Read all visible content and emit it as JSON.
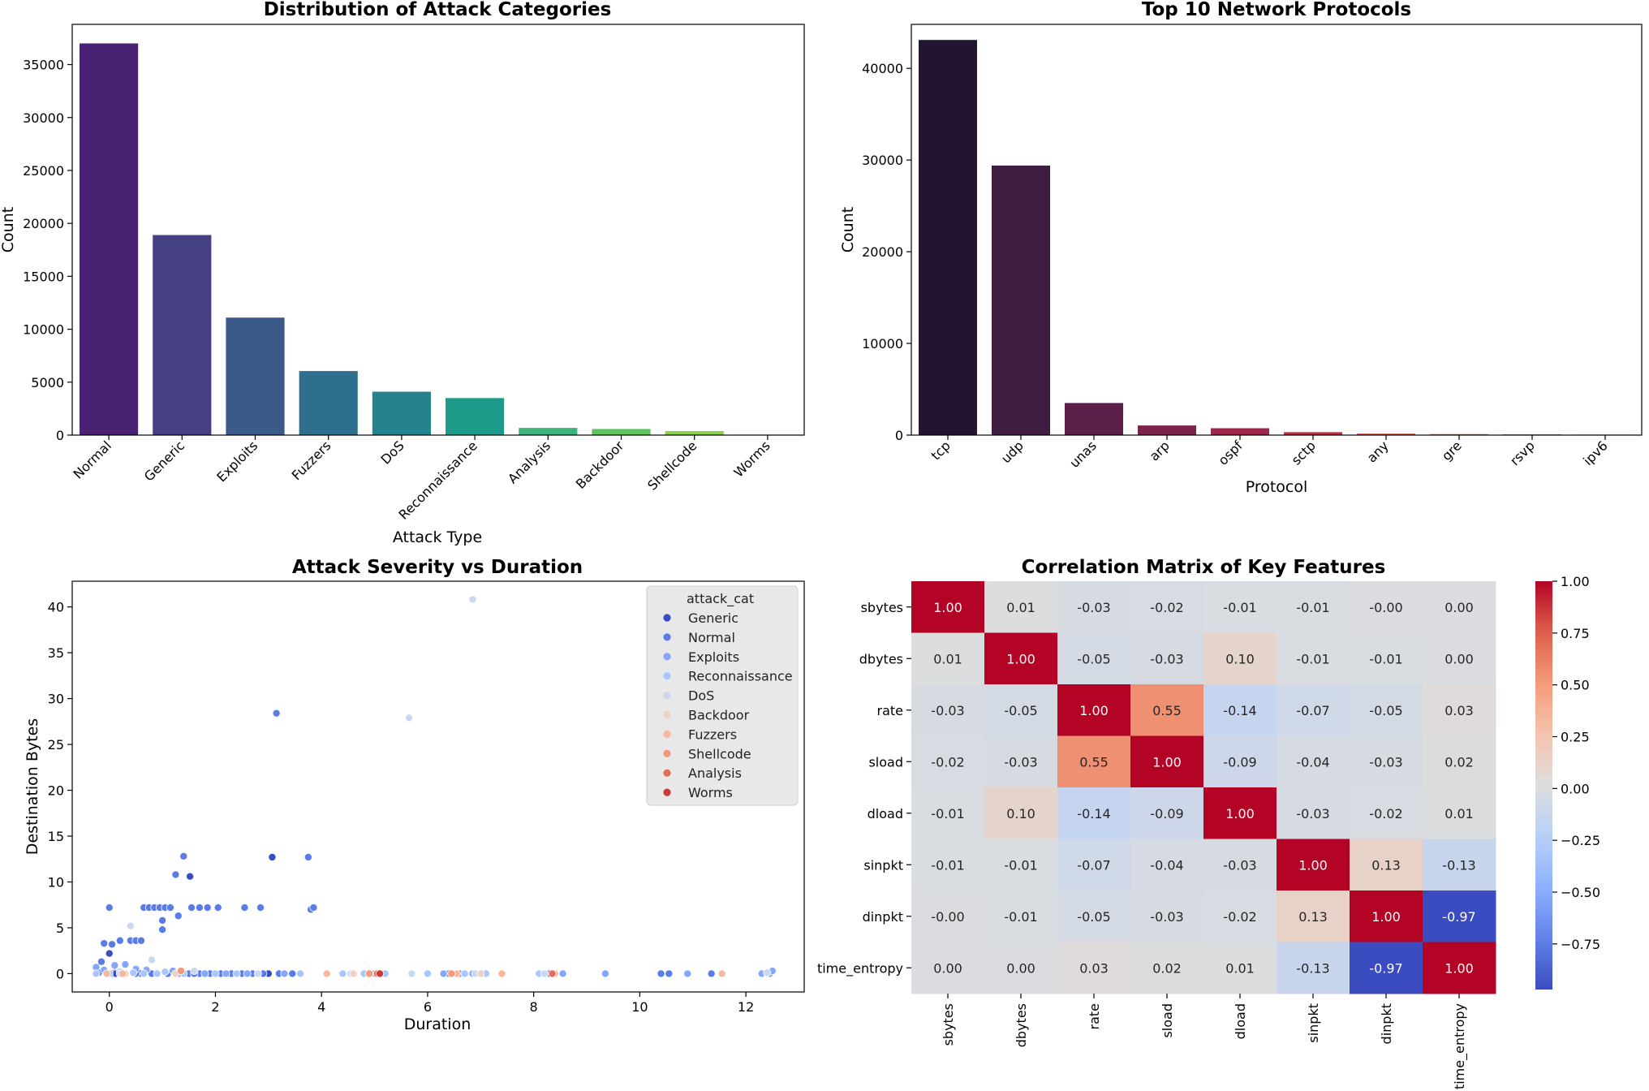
{
  "chart_data": [
    {
      "id": "attack_categories",
      "type": "bar",
      "title": "Distribution of Attack Categories",
      "xlabel": "Attack Type",
      "ylabel": "Count",
      "categories": [
        "Normal",
        "Generic",
        "Exploits",
        "Fuzzers",
        "DoS",
        "Reconnaissance",
        "Analysis",
        "Backdoor",
        "Shellcode",
        "Worms"
      ],
      "values": [
        37000,
        18900,
        11100,
        6050,
        4100,
        3500,
        680,
        580,
        380,
        44
      ],
      "ylim": [
        0,
        38800
      ],
      "yticks": [
        0,
        5000,
        10000,
        15000,
        20000,
        25000,
        30000,
        35000
      ],
      "colors": [
        "#482172",
        "#453f84",
        "#3b5a8a",
        "#2e6f8e",
        "#25838e",
        "#1e9a8a",
        "#3bb37a",
        "#5fc35f",
        "#8ad149",
        "#b8de29"
      ]
    },
    {
      "id": "protocols",
      "type": "bar",
      "title": "Top 10 Network Protocols",
      "xlabel": "Protocol",
      "ylabel": "Count",
      "categories": [
        "tcp",
        "udp",
        "unas",
        "arp",
        "ospf",
        "sctp",
        "any",
        "gre",
        "rsvp",
        "ipv6"
      ],
      "values": [
        43100,
        29400,
        3500,
        1050,
        750,
        320,
        160,
        110,
        90,
        60
      ],
      "ylim": [
        0,
        44800
      ],
      "yticks": [
        0,
        10000,
        20000,
        30000,
        40000
      ],
      "colors": [
        "#231530",
        "#3e1d40",
        "#5c2048",
        "#7d234b",
        "#9e2649",
        "#bc3142",
        "#d24d3f",
        "#e06e4c",
        "#e98a66",
        "#f0a37f"
      ]
    },
    {
      "id": "severity_duration",
      "type": "scatter",
      "title": "Attack Severity vs Duration",
      "xlabel": "Duration",
      "ylabel": "Destination Bytes",
      "xlim": [
        -0.7,
        13.1
      ],
      "ylim": [
        -2.0,
        42.8
      ],
      "xticks": [
        0,
        2,
        4,
        6,
        8,
        10,
        12
      ],
      "yticks": [
        0,
        5,
        10,
        15,
        20,
        25,
        30,
        35,
        40
      ],
      "legend_title": "attack_cat",
      "legend_position": "upper right",
      "series": [
        {
          "name": "Generic",
          "color": "#3b4cc0",
          "points": [
            [
              0.0,
              2.2
            ],
            [
              3.07,
              12.7
            ],
            [
              1.52,
              10.6
            ],
            [
              0.1,
              0.1
            ],
            [
              0.05,
              0.0
            ],
            [
              0.6,
              0.0
            ],
            [
              3.0,
              0.0
            ],
            [
              0.12,
              0.0
            ]
          ]
        },
        {
          "name": "Normal",
          "color": "#5b7ce6",
          "points": [
            [
              -0.2,
              0.1
            ],
            [
              -0.15,
              1.3
            ],
            [
              -0.1,
              3.3
            ],
            [
              0.0,
              7.2
            ],
            [
              0.05,
              3.2
            ],
            [
              0.2,
              3.6
            ],
            [
              0.4,
              3.6
            ],
            [
              0.5,
              3.6
            ],
            [
              0.6,
              3.6
            ],
            [
              0.65,
              7.2
            ],
            [
              0.75,
              7.2
            ],
            [
              0.85,
              7.2
            ],
            [
              0.95,
              7.2
            ],
            [
              1.05,
              7.2
            ],
            [
              1.15,
              7.2
            ],
            [
              1.0,
              5.8
            ],
            [
              1.0,
              4.8
            ],
            [
              1.3,
              6.3
            ],
            [
              1.55,
              7.2
            ],
            [
              1.7,
              7.2
            ],
            [
              1.85,
              7.2
            ],
            [
              2.05,
              7.2
            ],
            [
              2.55,
              7.2
            ],
            [
              2.85,
              7.2
            ],
            [
              3.15,
              28.4
            ],
            [
              3.75,
              12.7
            ],
            [
              3.8,
              7.0
            ],
            [
              3.85,
              7.2
            ],
            [
              1.25,
              10.8
            ],
            [
              1.4,
              12.8
            ],
            [
              0.3,
              0.0
            ],
            [
              0.5,
              0.0
            ],
            [
              0.8,
              0.0
            ],
            [
              1.1,
              0.0
            ],
            [
              1.3,
              0.0
            ],
            [
              1.5,
              0.0
            ],
            [
              1.7,
              0.0
            ],
            [
              1.9,
              0.0
            ],
            [
              2.1,
              0.0
            ],
            [
              2.3,
              0.0
            ],
            [
              2.5,
              0.0
            ],
            [
              2.7,
              0.0
            ],
            [
              2.9,
              0.0
            ],
            [
              3.2,
              0.0
            ],
            [
              3.45,
              0.0
            ],
            [
              1.6,
              0.0
            ],
            [
              10.4,
              0.0
            ],
            [
              10.55,
              0.0
            ],
            [
              11.35,
              0.0
            ],
            [
              6.6,
              0.0
            ],
            [
              7.05,
              0.0
            ],
            [
              8.3,
              0.0
            ],
            [
              6.4,
              0.0
            ]
          ]
        },
        {
          "name": "Exploits",
          "color": "#84a7fc",
          "points": [
            [
              -0.25,
              0.7
            ],
            [
              -0.1,
              0.4
            ],
            [
              0.1,
              0.9
            ],
            [
              0.3,
              1.0
            ],
            [
              0.5,
              0.5
            ],
            [
              0.7,
              0.4
            ],
            [
              1.2,
              0.3
            ],
            [
              1.8,
              0.0
            ],
            [
              2.2,
              0.0
            ],
            [
              2.6,
              0.0
            ],
            [
              3.3,
              0.0
            ],
            [
              5.0,
              0.0
            ],
            [
              6.3,
              0.0
            ],
            [
              6.85,
              0.0
            ],
            [
              7.05,
              0.0
            ],
            [
              8.55,
              0.0
            ],
            [
              9.35,
              0.0
            ],
            [
              10.9,
              0.0
            ],
            [
              12.45,
              0.0
            ],
            [
              12.5,
              0.3
            ],
            [
              12.3,
              0.0
            ]
          ]
        },
        {
          "name": "Reconnaissance",
          "color": "#aac7fd",
          "points": [
            [
              -0.25,
              0.0
            ],
            [
              0.0,
              0.0
            ],
            [
              0.2,
              0.2
            ],
            [
              0.45,
              0.1
            ],
            [
              0.65,
              0.0
            ],
            [
              0.9,
              0.0
            ],
            [
              1.05,
              0.2
            ],
            [
              1.4,
              0.0
            ],
            [
              2.0,
              0.0
            ],
            [
              2.4,
              0.0
            ],
            [
              3.6,
              0.0
            ],
            [
              4.4,
              0.0
            ],
            [
              4.8,
              0.0
            ],
            [
              5.2,
              0.0
            ],
            [
              6.0,
              0.0
            ],
            [
              6.7,
              0.0
            ],
            [
              7.1,
              0.0
            ],
            [
              8.1,
              0.0
            ],
            [
              8.4,
              0.0
            ]
          ]
        },
        {
          "name": "DoS",
          "color": "#c9d8ef",
          "points": [
            [
              6.85,
              40.8
            ],
            [
              5.65,
              27.9
            ],
            [
              0.4,
              5.2
            ],
            [
              0.2,
              0.0
            ],
            [
              0.8,
              1.5
            ],
            [
              1.6,
              0.3
            ],
            [
              2.8,
              0.0
            ],
            [
              4.55,
              0.0
            ],
            [
              5.7,
              0.0
            ],
            [
              6.9,
              0.0
            ],
            [
              8.2,
              0.0
            ],
            [
              12.4,
              0.1
            ]
          ]
        },
        {
          "name": "Backdoor",
          "color": "#edd1c2",
          "points": [
            [
              0.3,
              0.0
            ],
            [
              1.25,
              0.0
            ],
            [
              4.6,
              0.0
            ],
            [
              6.5,
              0.0
            ],
            [
              7.0,
              0.0
            ]
          ]
        },
        {
          "name": "Fuzzers",
          "color": "#f7b89c",
          "points": [
            [
              -0.05,
              0.0
            ],
            [
              0.25,
              0.0
            ],
            [
              4.1,
              0.0
            ],
            [
              6.55,
              0.0
            ],
            [
              7.4,
              0.0
            ],
            [
              8.4,
              0.0
            ],
            [
              11.55,
              0.0
            ]
          ]
        },
        {
          "name": "Shellcode",
          "color": "#f49a7b",
          "points": [
            [
              4.9,
              0.0
            ],
            [
              6.45,
              0.0
            ],
            [
              1.35,
              0.3
            ]
          ]
        },
        {
          "name": "Analysis",
          "color": "#e36c55",
          "points": [
            [
              5.05,
              0.0
            ],
            [
              8.35,
              0.0
            ]
          ]
        },
        {
          "name": "Worms",
          "color": "#c83a32",
          "points": [
            [
              5.1,
              0.0
            ]
          ]
        }
      ]
    },
    {
      "id": "correlation",
      "type": "heatmap",
      "title": "Correlation Matrix of Key Features",
      "labels": [
        "sbytes",
        "dbytes",
        "rate",
        "sload",
        "dload",
        "sinpkt",
        "dinpkt",
        "time_entropy"
      ],
      "matrix": [
        [
          1.0,
          0.01,
          -0.03,
          -0.02,
          -0.01,
          -0.01,
          -0.0,
          0.0
        ],
        [
          0.01,
          1.0,
          -0.05,
          -0.03,
          0.1,
          -0.01,
          -0.01,
          0.0
        ],
        [
          -0.03,
          -0.05,
          1.0,
          0.55,
          -0.14,
          -0.07,
          -0.05,
          0.03
        ],
        [
          -0.02,
          -0.03,
          0.55,
          1.0,
          -0.09,
          -0.04,
          -0.03,
          0.02
        ],
        [
          -0.01,
          0.1,
          -0.14,
          -0.09,
          1.0,
          -0.03,
          -0.02,
          0.01
        ],
        [
          -0.01,
          -0.01,
          -0.07,
          -0.04,
          -0.03,
          1.0,
          0.13,
          -0.13
        ],
        [
          -0.0,
          -0.01,
          -0.05,
          -0.03,
          -0.02,
          0.13,
          1.0,
          -0.97
        ],
        [
          0.0,
          0.0,
          0.03,
          0.02,
          0.01,
          -0.13,
          -0.97,
          1.0
        ]
      ],
      "cell_text": [
        [
          "1.00",
          "0.01",
          "-0.03",
          "-0.02",
          "-0.01",
          "-0.01",
          "-0.00",
          "0.00"
        ],
        [
          "0.01",
          "1.00",
          "-0.05",
          "-0.03",
          "0.10",
          "-0.01",
          "-0.01",
          "0.00"
        ],
        [
          "-0.03",
          "-0.05",
          "1.00",
          "0.55",
          "-0.14",
          "-0.07",
          "-0.05",
          "0.03"
        ],
        [
          "-0.02",
          "-0.03",
          "0.55",
          "1.00",
          "-0.09",
          "-0.04",
          "-0.03",
          "0.02"
        ],
        [
          "-0.01",
          "0.10",
          "-0.14",
          "-0.09",
          "1.00",
          "-0.03",
          "-0.02",
          "0.01"
        ],
        [
          "-0.01",
          "-0.01",
          "-0.07",
          "-0.04",
          "-0.03",
          "1.00",
          "0.13",
          "-0.13"
        ],
        [
          "-0.00",
          "-0.01",
          "-0.05",
          "-0.03",
          "-0.02",
          "0.13",
          "1.00",
          "-0.97"
        ],
        [
          "0.00",
          "0.00",
          "0.03",
          "0.02",
          "0.01",
          "-0.13",
          "-0.97",
          "1.00"
        ]
      ],
      "colorbar_range": [
        -0.97,
        1.0
      ],
      "colorbar_ticks": [
        1.0,
        0.75,
        0.5,
        0.25,
        0.0,
        -0.25,
        -0.5,
        -0.75
      ],
      "colorbar_tick_labels": [
        "1.00",
        "0.75",
        "0.50",
        "0.25",
        "0.00",
        "−0.25",
        "−0.50",
        "−0.75"
      ],
      "colormap": "coolwarm"
    }
  ]
}
